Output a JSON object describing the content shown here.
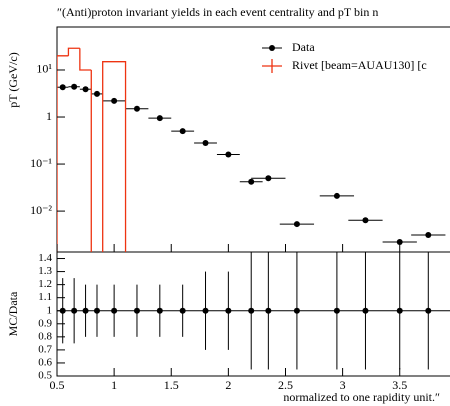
{
  "chart_data": {
    "type": "rivet",
    "title": "″(Anti)proton invariant yields in each event centrality and pT bin n",
    "ylabel": "pT (GeV/c)",
    "ratio_ylabel": "MC/Data",
    "xlabel": "normalized to one rapidity unit.″",
    "log_y": true,
    "legend": "upper right",
    "xlim": [
      0.5,
      3.94
    ],
    "xticks": [
      0.5,
      1,
      1.5,
      2,
      2.5,
      3,
      3.5
    ],
    "ylim": [
      0.00135,
      82
    ],
    "yticks": [
      {
        "value": 10,
        "label": "10¹"
      },
      1,
      {
        "value": 0.1,
        "label": "10⁻¹"
      },
      {
        "value": 0.01,
        "label": "10⁻²"
      }
    ],
    "ratio_ylim": [
      0.5,
      1.45
    ],
    "ratio_yticks": [
      0.5,
      0.6,
      0.7,
      0.8,
      0.9,
      1,
      1.1,
      1.2,
      1.3,
      1.4
    ],
    "series": [
      {
        "name": "Data",
        "color": "#000000",
        "x": [
          0.55,
          0.65,
          0.75,
          0.85,
          1.0,
          1.2,
          1.4,
          1.6,
          1.8,
          2.0,
          2.2,
          2.35,
          2.6,
          2.95,
          3.2,
          3.5,
          3.75
        ],
        "xerr": [
          0.05,
          0.05,
          0.05,
          0.05,
          0.1,
          0.1,
          0.1,
          0.1,
          0.1,
          0.1,
          0.1,
          0.15,
          0.15,
          0.15,
          0.15,
          0.15,
          0.15
        ],
        "values": [
          4.3,
          4.4,
          3.9,
          3.1,
          2.2,
          1.5,
          0.95,
          0.5,
          0.28,
          0.16,
          0.042,
          0.05,
          0.0053,
          0.021,
          0.0064,
          0.0022,
          0.0031
        ],
        "ratio": [
          1,
          1,
          1,
          1,
          1,
          1,
          1,
          1,
          1,
          1,
          1,
          1,
          1,
          1,
          1,
          1,
          1
        ],
        "ratio_err": [
          0.25,
          0.25,
          0.2,
          0.2,
          0.2,
          0.2,
          0.2,
          0.2,
          0.3,
          0.3,
          0.45,
          0.45,
          0.45,
          0.45,
          0.45,
          0.45,
          0.45
        ]
      },
      {
        "name": "Rivet [beam=AUAU130] [c",
        "color": "#ee3311",
        "bins": [
          0.5,
          0.6,
          0.7,
          0.8,
          0.9,
          1.1
        ],
        "values": [
          20,
          29,
          10,
          0,
          15
        ]
      }
    ]
  }
}
